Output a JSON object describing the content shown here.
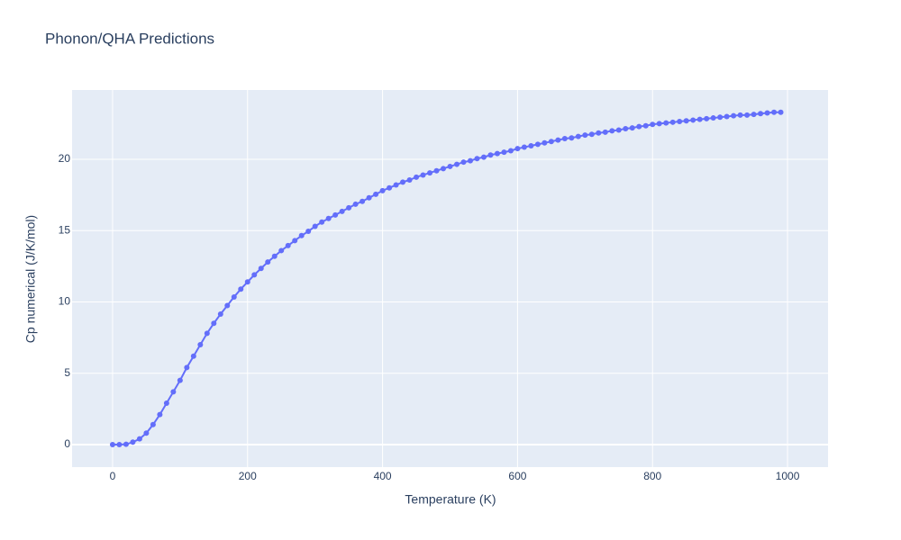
{
  "chart_data": {
    "type": "line",
    "title": "Phonon/QHA Predictions",
    "x_label": "Temperature (K)",
    "y_label": "Cp numerical (J/K/mol)",
    "x": [
      0,
      10,
      20,
      30,
      40,
      50,
      60,
      70,
      80,
      90,
      100,
      110,
      120,
      130,
      140,
      150,
      160,
      170,
      180,
      190,
      200,
      210,
      220,
      230,
      240,
      250,
      260,
      270,
      280,
      290,
      300,
      310,
      320,
      330,
      340,
      350,
      360,
      370,
      380,
      390,
      400,
      410,
      420,
      430,
      440,
      450,
      460,
      470,
      480,
      490,
      500,
      510,
      520,
      530,
      540,
      550,
      560,
      570,
      580,
      590,
      600,
      610,
      620,
      630,
      640,
      650,
      660,
      670,
      680,
      690,
      700,
      710,
      720,
      730,
      740,
      750,
      760,
      770,
      780,
      790,
      800,
      810,
      820,
      830,
      840,
      850,
      860,
      870,
      880,
      890,
      900,
      910,
      920,
      930,
      940,
      950,
      960,
      970,
      980,
      990
    ],
    "series": [
      {
        "name": "Cp numerical",
        "color": "#636efa",
        "values": [
          0,
          0,
          0.02,
          0.17,
          0.4,
          0.8,
          1.4,
          2.1,
          2.9,
          3.7,
          4.5,
          5.4,
          6.2,
          7.0,
          7.8,
          8.5,
          9.15,
          9.75,
          10.35,
          10.9,
          11.4,
          11.9,
          12.35,
          12.8,
          13.2,
          13.6,
          13.95,
          14.3,
          14.65,
          14.95,
          15.3,
          15.6,
          15.85,
          16.1,
          16.35,
          16.6,
          16.85,
          17.05,
          17.3,
          17.55,
          17.8,
          18.0,
          18.2,
          18.4,
          18.55,
          18.75,
          18.9,
          19.05,
          19.2,
          19.35,
          19.5,
          19.65,
          19.8,
          19.9,
          20.05,
          20.15,
          20.3,
          20.4,
          20.5,
          20.6,
          20.75,
          20.85,
          20.95,
          21.05,
          21.15,
          21.25,
          21.35,
          21.45,
          21.5,
          21.6,
          21.7,
          21.75,
          21.85,
          21.9,
          22.0,
          22.05,
          22.15,
          22.2,
          22.3,
          22.35,
          22.45,
          22.5,
          22.55,
          22.6,
          22.65,
          22.7,
          22.75,
          22.8,
          22.85,
          22.9,
          22.95,
          23.0,
          23.05,
          23.1,
          23.1,
          23.15,
          23.2,
          23.25,
          23.3,
          23.3
        ]
      }
    ],
    "xlim": [
      -60,
      1060
    ],
    "ylim": [
      -1.58,
      24.86
    ],
    "xticks": [
      0,
      200,
      400,
      600,
      800,
      1000
    ],
    "yticks": [
      0,
      5,
      10,
      15,
      20
    ],
    "grid": true
  }
}
